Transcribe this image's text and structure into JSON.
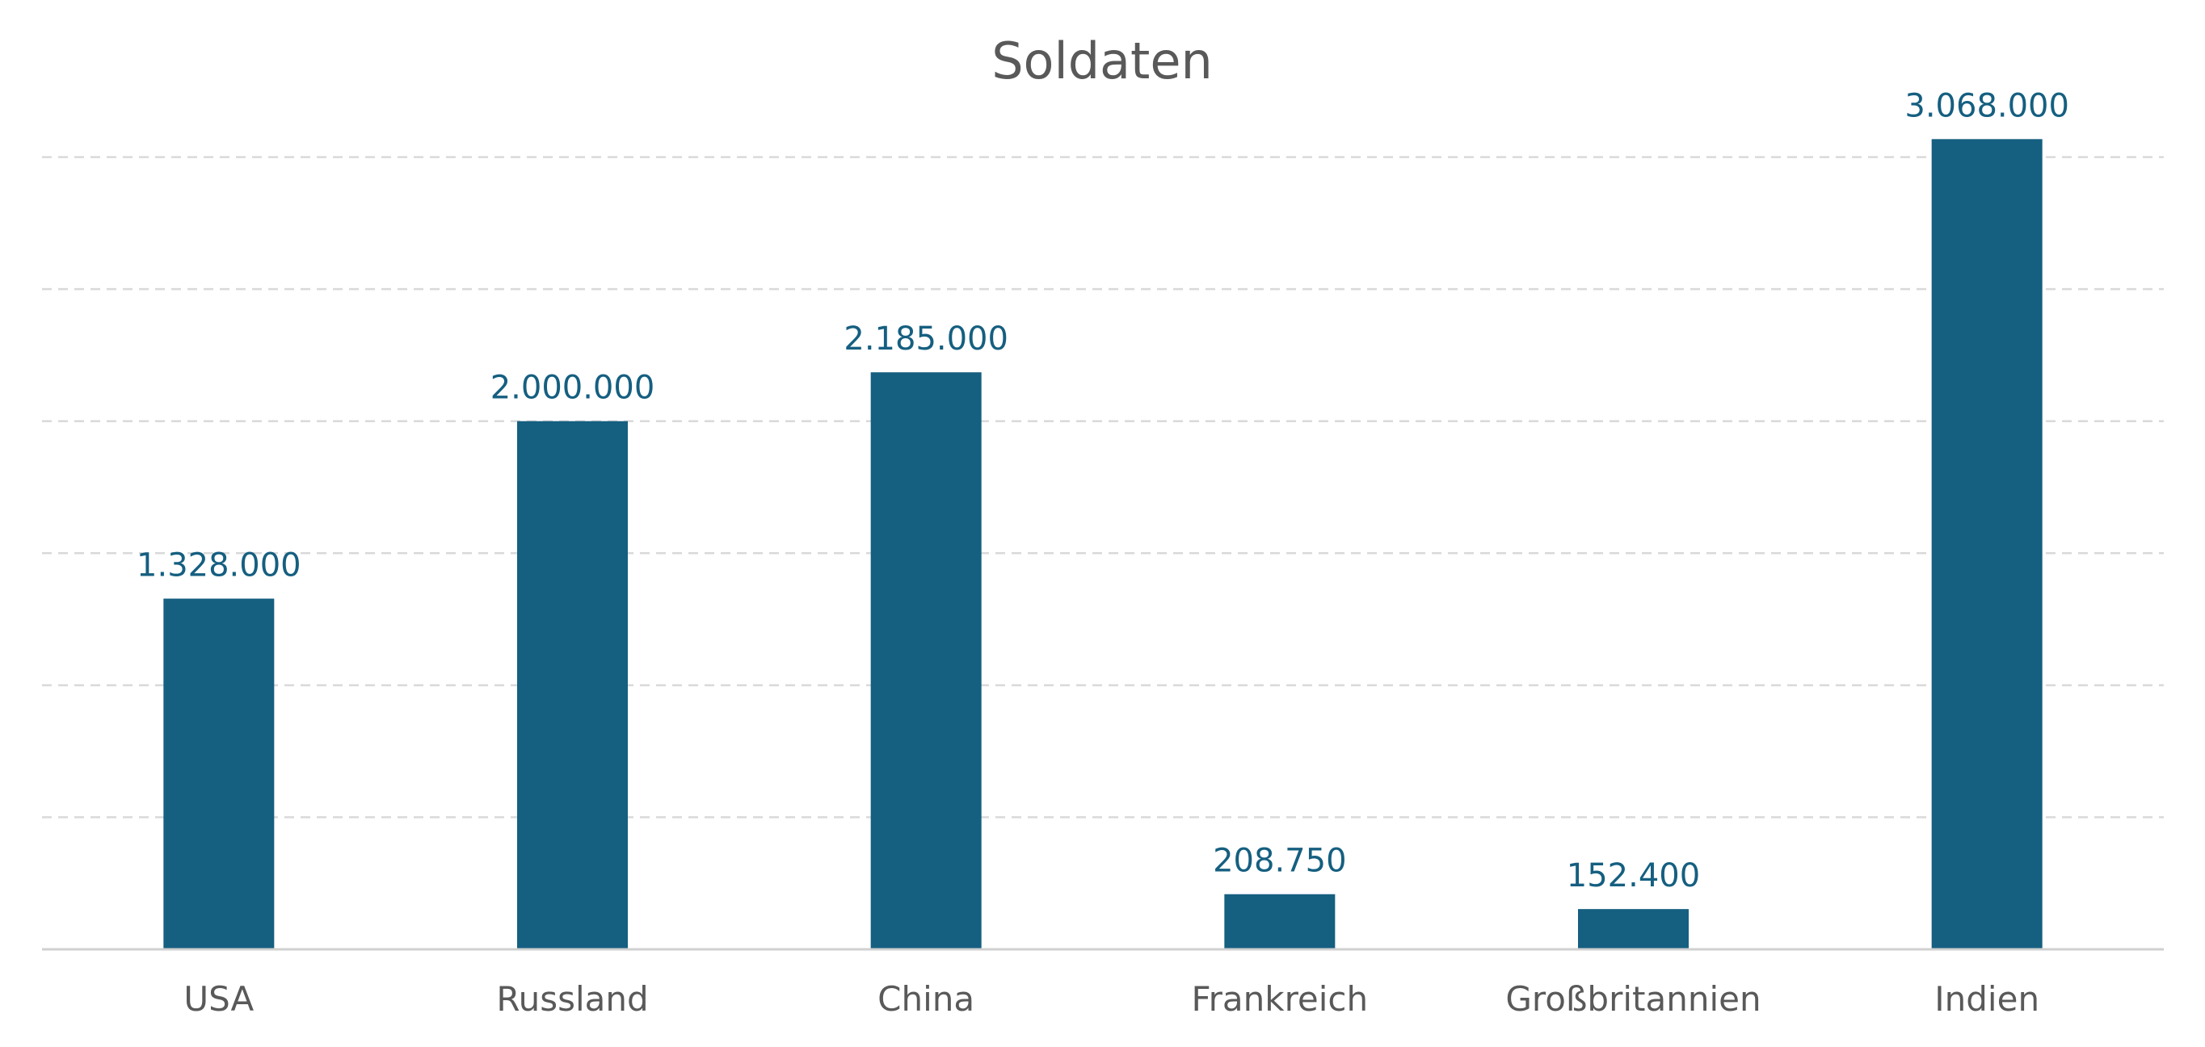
{
  "chart_data": {
    "type": "bar",
    "title": "Soldaten",
    "xlabel": "",
    "ylabel": "",
    "categories": [
      "USA",
      "Russland",
      "China",
      "Frankreich",
      "Großbritannien",
      "Indien"
    ],
    "values": [
      1328000,
      2000000,
      2185000,
      208750,
      152400,
      3068000
    ],
    "value_labels": [
      "1.328.000",
      "2.000.000",
      "2.185.000",
      "208.750",
      "152.400",
      "3.068.000"
    ],
    "ylim": [
      0,
      3500000
    ],
    "y_gridline_step": 500000,
    "grid": true,
    "grid_style": "dashed",
    "legend": "none",
    "y_axis_labels_shown": false,
    "colors": {
      "bar": "#155f80",
      "value_label": "#155f80",
      "title": "#595959",
      "tick_label": "#595959",
      "grid": "#d9d9d9",
      "axis": "#d0d0d0"
    }
  }
}
